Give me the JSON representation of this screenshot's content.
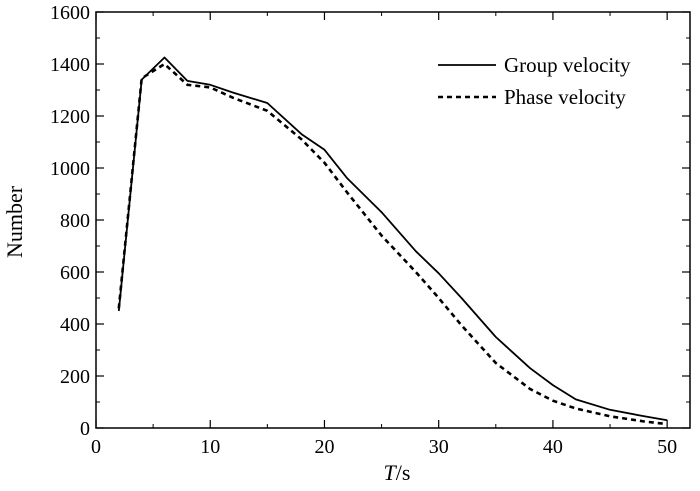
{
  "chart_data": {
    "type": "line",
    "xlabel_italic": "T",
    "xlabel_rest": "/s",
    "ylabel": "Number",
    "xlim": [
      0,
      52
    ],
    "ylim": [
      0,
      1600
    ],
    "xticks": [
      0,
      10,
      20,
      30,
      40,
      50
    ],
    "yticks": [
      0,
      200,
      400,
      600,
      800,
      1000,
      1200,
      1400,
      1600
    ],
    "grid": false,
    "legend_position": "top-right",
    "series": [
      {
        "name": "Group velocity",
        "line_style": "solid",
        "x": [
          2,
          4,
          6,
          8,
          10,
          12,
          15,
          18,
          20,
          22,
          25,
          28,
          30,
          32,
          35,
          38,
          40,
          42,
          45,
          48,
          50
        ],
        "y": [
          450,
          1340,
          1425,
          1335,
          1320,
          1290,
          1250,
          1130,
          1070,
          960,
          830,
          680,
          595,
          500,
          350,
          230,
          165,
          110,
          70,
          45,
          30
        ]
      },
      {
        "name": "Phase velocity",
        "line_style": "dashed",
        "x": [
          2,
          4,
          6,
          8,
          10,
          12,
          15,
          18,
          20,
          22,
          25,
          28,
          30,
          32,
          35,
          38,
          40,
          42,
          45,
          48,
          50
        ],
        "y": [
          460,
          1345,
          1400,
          1320,
          1310,
          1270,
          1220,
          1110,
          1020,
          905,
          740,
          600,
          500,
          395,
          250,
          150,
          105,
          75,
          45,
          25,
          15
        ]
      }
    ]
  }
}
